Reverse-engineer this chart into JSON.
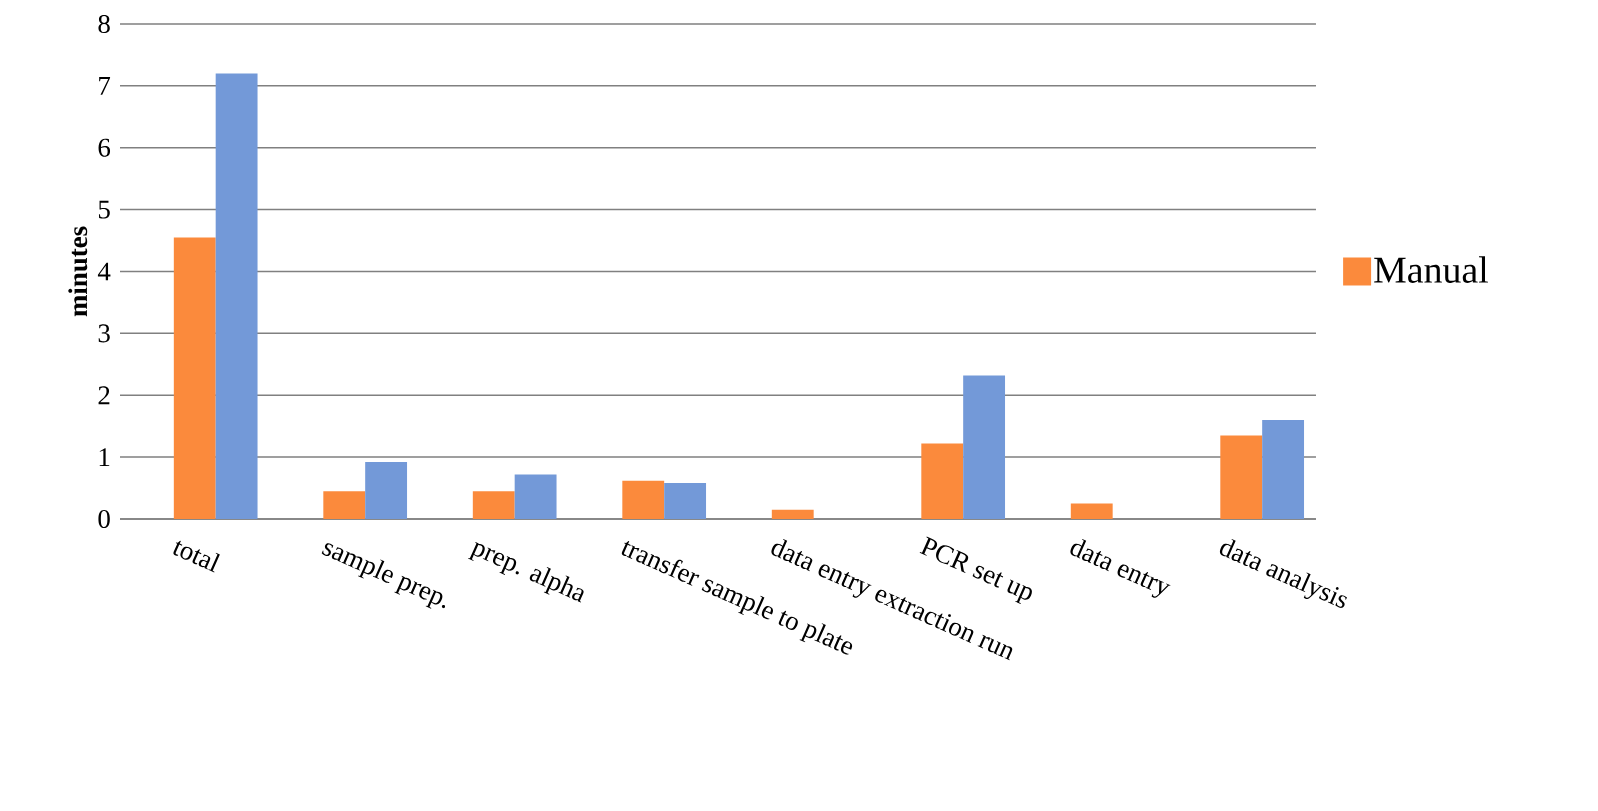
{
  "chart_data": {
    "type": "bar",
    "ylabel": "minutes",
    "categories": [
      "total",
      "sample prep.",
      "prep. alpha",
      "transfer sample to plate",
      "data entry extraction run",
      "PCR set up",
      "data entry",
      "data analysis"
    ],
    "series": [
      {
        "name": "Manual",
        "color": "#fb8a3c",
        "values": [
          4.55,
          0.45,
          0.45,
          0.62,
          0.15,
          1.22,
          0.25,
          1.35
        ]
      },
      {
        "color": "#7399d8",
        "values": [
          7.2,
          0.92,
          0.72,
          0.58,
          null,
          2.32,
          null,
          1.6
        ]
      }
    ],
    "ylim": [
      0,
      8
    ],
    "yticks": [
      0,
      1,
      2,
      3,
      4,
      5,
      6,
      7,
      8
    ],
    "grid": "y",
    "legend": "right"
  }
}
